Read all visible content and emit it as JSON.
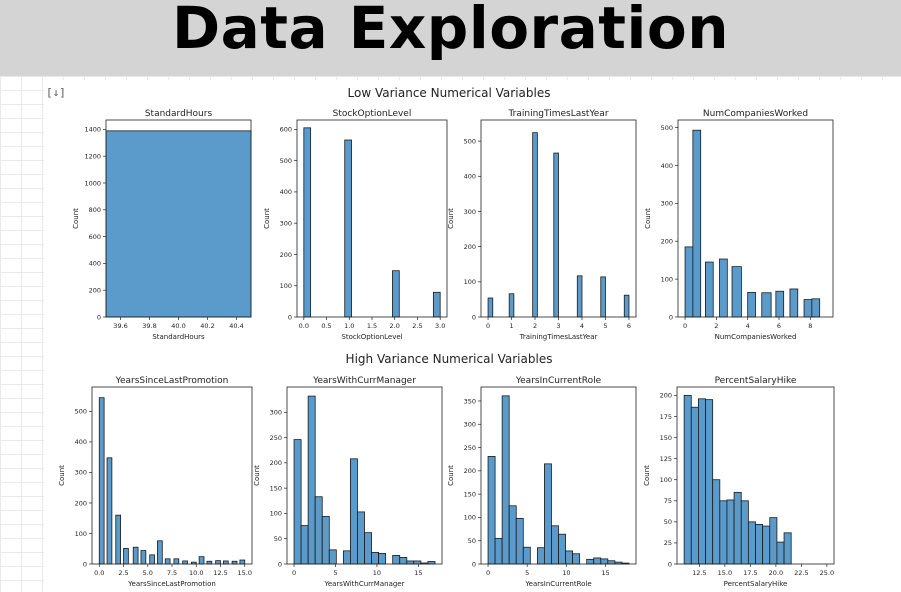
{
  "slide": {
    "title": "Data Exploration"
  },
  "cell_marker": "[↓]",
  "section_titles": [
    "Low Variance Numerical Variables",
    "High Variance Numerical Variables"
  ],
  "colors": {
    "bar_fill": "#5b9bcb",
    "bar_edge": "#1a1a1a",
    "header_bg": "#d4d4d4"
  },
  "chart_data": [
    {
      "type": "bar",
      "title": "StandardHours",
      "xlabel": "StandardHours",
      "ylabel": "Count",
      "xlim": [
        39.5,
        40.5
      ],
      "ylim": [
        0,
        1470
      ],
      "xticks": [
        39.6,
        39.8,
        40.0,
        40.2,
        40.4
      ],
      "xtick_labels": [
        "39.6",
        "39.8",
        "40.0",
        "40.2",
        "40.4"
      ],
      "yticks": [
        0,
        200,
        400,
        600,
        800,
        1000,
        1200,
        1400
      ],
      "ytick_labels": [
        "0",
        "200",
        "400",
        "600",
        "800",
        "1000",
        "1200",
        "1400"
      ],
      "bins": [
        [
          39.5,
          40.5,
          1389
        ]
      ]
    },
    {
      "type": "bar",
      "title": "StockOptionLevel",
      "xlabel": "StockOptionLevel",
      "ylabel": "Count",
      "xlim": [
        -0.15,
        3.15
      ],
      "ylim": [
        0,
        630
      ],
      "xticks": [
        0,
        0.5,
        1,
        1.5,
        2,
        2.5,
        3
      ],
      "xtick_labels": [
        "0.0",
        "0.5",
        "1.0",
        "1.5",
        "2.0",
        "2.5",
        "3.0"
      ],
      "yticks": [
        0,
        100,
        200,
        300,
        400,
        500,
        600
      ],
      "ytick_labels": [
        "0",
        "100",
        "200",
        "300",
        "400",
        "500",
        "600"
      ],
      "bins": [
        [
          0,
          0.15,
          605
        ],
        [
          0.9,
          1.05,
          566
        ],
        [
          1.95,
          2.1,
          148
        ],
        [
          2.85,
          3.0,
          79
        ]
      ]
    },
    {
      "type": "bar",
      "title": "TrainingTimesLastYear",
      "xlabel": "TrainingTimesLastYear",
      "ylabel": "Count",
      "xlim": [
        -0.3,
        6.3
      ],
      "ylim": [
        0,
        560
      ],
      "xticks": [
        0,
        1,
        2,
        3,
        4,
        5,
        6
      ],
      "xtick_labels": [
        "0",
        "1",
        "2",
        "3",
        "4",
        "5",
        "6"
      ],
      "yticks": [
        0,
        100,
        200,
        300,
        400,
        500
      ],
      "ytick_labels": [
        "0",
        "100",
        "200",
        "300",
        "400",
        "500"
      ],
      "bins": [
        [
          0,
          0.2,
          54
        ],
        [
          0.9,
          1.1,
          66
        ],
        [
          1.9,
          2.1,
          524
        ],
        [
          2.8,
          3.0,
          466
        ],
        [
          3.8,
          4.0,
          117
        ],
        [
          4.8,
          5.0,
          114
        ],
        [
          5.8,
          6.0,
          62
        ]
      ]
    },
    {
      "type": "bar",
      "title": "NumCompaniesWorked",
      "xlabel": "NumCompaniesWorked",
      "ylabel": "Count",
      "xlim": [
        -0.45,
        9.45
      ],
      "ylim": [
        0,
        520
      ],
      "xticks": [
        0,
        2,
        4,
        6,
        8
      ],
      "xtick_labels": [
        "0",
        "2",
        "4",
        "6",
        "8"
      ],
      "yticks": [
        0,
        100,
        200,
        300,
        400,
        500
      ],
      "ytick_labels": [
        "0",
        "100",
        "200",
        "300",
        "400",
        "500"
      ],
      "bins": [
        [
          0,
          0.5,
          185
        ],
        [
          0.5,
          1,
          493
        ],
        [
          1.3,
          1.8,
          145
        ],
        [
          2.2,
          2.7,
          153
        ],
        [
          2.9,
          3.4,
          0
        ],
        [
          3.0,
          3.6,
          133
        ],
        [
          4.0,
          4.5,
          65
        ],
        [
          4.7,
          5.2,
          0
        ],
        [
          4.9,
          5.4,
          0
        ],
        [
          4.9,
          5.5,
          64
        ],
        [
          5.8,
          6.3,
          68
        ],
        [
          6.7,
          7.2,
          74
        ],
        [
          7.6,
          8.1,
          46
        ],
        [
          8.1,
          8.6,
          48
        ]
      ]
    },
    {
      "type": "bar",
      "title": "YearsSinceLastPromotion",
      "xlabel": "YearsSinceLastPromotion",
      "ylabel": "Count",
      "xlim": [
        -0.75,
        15.75
      ],
      "ylim": [
        0,
        580
      ],
      "xticks": [
        0,
        2.5,
        5,
        7.5,
        10,
        12.5,
        15
      ],
      "xtick_labels": [
        "0.0",
        "2.5",
        "5.0",
        "7.5",
        "10.0",
        "12.5",
        "15.0"
      ],
      "yticks": [
        0,
        100,
        200,
        300,
        400,
        500
      ],
      "ytick_labels": [
        "0",
        "100",
        "200",
        "300",
        "400",
        "500"
      ],
      "bins": [
        [
          0,
          0.5,
          545
        ],
        [
          0.8,
          1.3,
          348
        ],
        [
          1.7,
          2.2,
          160
        ],
        [
          2.5,
          3.0,
          51
        ],
        [
          3.3,
          3.8,
          0
        ],
        [
          3.5,
          4.0,
          55
        ],
        [
          4.3,
          4.8,
          44
        ],
        [
          5.2,
          5.7,
          30
        ],
        [
          6.0,
          6.5,
          76
        ],
        [
          6.8,
          7.3,
          17
        ],
        [
          7.7,
          8.2,
          17
        ],
        [
          8.6,
          9.1,
          10
        ],
        [
          9.4,
          9.9,
          0
        ],
        [
          9.5,
          10.0,
          6
        ],
        [
          10.3,
          10.8,
          24
        ],
        [
          11.1,
          11.6,
          9
        ],
        [
          12.0,
          12.5,
          11
        ],
        [
          12.8,
          13.3,
          10
        ],
        [
          13.7,
          14.2,
          9
        ],
        [
          14.5,
          15.0,
          13
        ]
      ]
    },
    {
      "type": "bar",
      "title": "YearsWithCurrManager",
      "xlabel": "YearsWithCurrManager",
      "ylabel": "Count",
      "xlim": [
        -0.85,
        17.85
      ],
      "ylim": [
        0,
        350
      ],
      "xticks": [
        0,
        5,
        10,
        15
      ],
      "xtick_labels": [
        "0",
        "5",
        "10",
        "15"
      ],
      "yticks": [
        0,
        50,
        100,
        150,
        200,
        250,
        300
      ],
      "ytick_labels": [
        "0",
        "50",
        "100",
        "150",
        "200",
        "250",
        "300"
      ],
      "bins": [
        [
          0,
          0.85,
          246
        ],
        [
          0.85,
          1.7,
          76
        ],
        [
          1.7,
          2.55,
          332
        ],
        [
          2.55,
          3.4,
          133
        ],
        [
          3.4,
          4.25,
          94
        ],
        [
          4.25,
          5.1,
          28
        ],
        [
          5.1,
          5.95,
          0
        ],
        [
          5.95,
          6.8,
          26
        ],
        [
          6.8,
          7.65,
          208
        ],
        [
          7.65,
          8.5,
          103
        ],
        [
          8.5,
          9.35,
          62
        ],
        [
          9.35,
          10.2,
          23
        ],
        [
          10.2,
          11.05,
          21
        ],
        [
          11.05,
          11.9,
          0
        ],
        [
          11.9,
          12.75,
          17
        ],
        [
          12.75,
          13.6,
          13
        ],
        [
          13.6,
          14.45,
          6
        ],
        [
          14.45,
          15.3,
          6
        ],
        [
          15.3,
          16.15,
          2
        ],
        [
          16.15,
          17.0,
          5
        ]
      ]
    },
    {
      "type": "bar",
      "title": "YearsInCurrentRole",
      "xlabel": "YearsInCurrentRole",
      "ylabel": "Count",
      "xlim": [
        -0.9,
        18.9
      ],
      "ylim": [
        0,
        380
      ],
      "xticks": [
        0,
        5,
        10,
        15
      ],
      "xtick_labels": [
        "0",
        "5",
        "10",
        "15"
      ],
      "yticks": [
        0,
        50,
        100,
        150,
        200,
        250,
        300,
        350
      ],
      "ytick_labels": [
        "0",
        "50",
        "100",
        "150",
        "200",
        "250",
        "300",
        "350"
      ],
      "bins": [
        [
          0,
          0.9,
          231
        ],
        [
          0.9,
          1.8,
          55
        ],
        [
          1.8,
          2.7,
          361
        ],
        [
          2.7,
          3.6,
          125
        ],
        [
          3.6,
          4.5,
          98
        ],
        [
          4.5,
          5.4,
          36
        ],
        [
          5.4,
          6.3,
          0
        ],
        [
          6.3,
          7.2,
          35
        ],
        [
          7.2,
          8.1,
          215
        ],
        [
          8.1,
          9.0,
          82
        ],
        [
          9.0,
          9.9,
          64
        ],
        [
          9.9,
          10.8,
          28
        ],
        [
          10.8,
          11.7,
          22
        ],
        [
          11.7,
          12.6,
          0
        ],
        [
          12.6,
          13.5,
          10
        ],
        [
          13.5,
          14.4,
          13
        ],
        [
          14.4,
          15.3,
          11
        ],
        [
          15.3,
          16.2,
          7
        ],
        [
          16.2,
          17.1,
          4
        ],
        [
          17.1,
          18.0,
          2
        ]
      ]
    },
    {
      "type": "bar",
      "title": "PercentSalaryHike",
      "xlabel": "PercentSalaryHike",
      "ylabel": "Count",
      "xlim": [
        10.3,
        25.7
      ],
      "ylim": [
        0,
        210
      ],
      "xticks": [
        12.5,
        15,
        17.5,
        20,
        22.5,
        25
      ],
      "xtick_labels": [
        "12.5",
        "15.0",
        "17.5",
        "20.0",
        "22.5",
        "25.0"
      ],
      "yticks": [
        0,
        25,
        50,
        75,
        100,
        125,
        150,
        175,
        200
      ],
      "ytick_labels": [
        "0",
        "25",
        "50",
        "75",
        "100",
        "125",
        "150",
        "175",
        "200"
      ],
      "bins": [
        [
          11,
          11.7,
          200
        ],
        [
          11.7,
          12.4,
          186
        ],
        [
          12.4,
          13.1,
          196
        ],
        [
          13.1,
          13.8,
          195
        ],
        [
          13.8,
          14.5,
          100
        ],
        [
          14.5,
          15.2,
          75
        ],
        [
          15.2,
          15.9,
          76
        ],
        [
          15.9,
          16.6,
          85
        ],
        [
          16.6,
          17.3,
          75
        ],
        [
          17.3,
          18.0,
          50
        ],
        [
          18.0,
          18.7,
          47
        ],
        [
          18.7,
          19.4,
          45
        ],
        [
          19.4,
          20.1,
          55
        ],
        [
          20.1,
          20.8,
          26
        ],
        [
          20.8,
          21.5,
          37
        ],
        [
          21.5,
          22.2,
          0
        ]
      ]
    }
  ]
}
